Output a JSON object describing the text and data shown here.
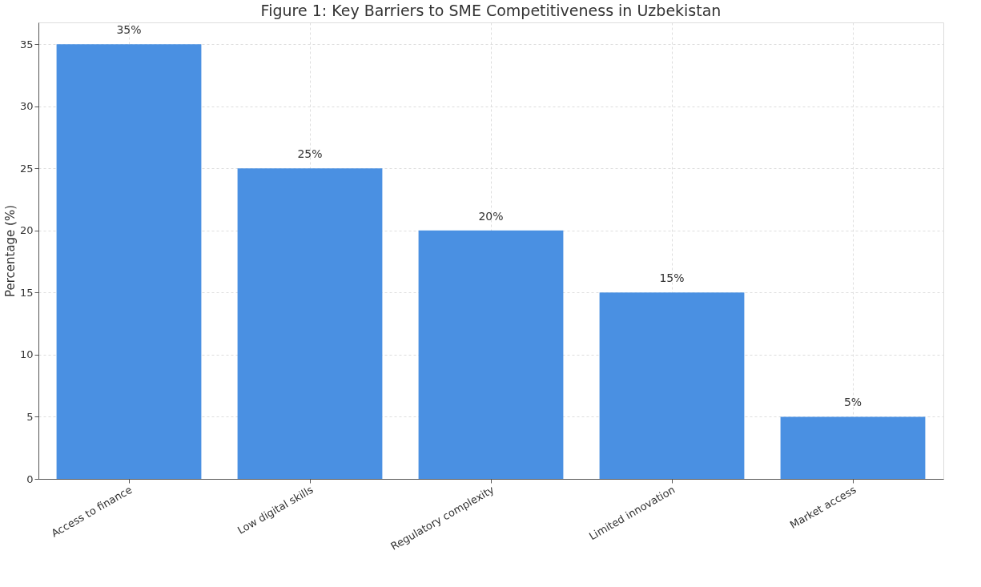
{
  "chart_data": {
    "type": "bar",
    "title": "Figure 1: Key Barriers to SME Competitiveness in Uzbekistan",
    "ylabel": "Percentage (%)",
    "categories": [
      "Access to finance",
      "Low digital skills",
      "Regulatory complexity",
      "Limited innovation",
      "Market access"
    ],
    "values": [
      35,
      25,
      20,
      15,
      5
    ],
    "value_labels": [
      "35%",
      "25%",
      "20%",
      "15%",
      "5%"
    ],
    "color": "#4a90e2",
    "ylim": [
      0,
      36.75
    ],
    "yticks": [
      0,
      5,
      10,
      15,
      20,
      25,
      30,
      35
    ],
    "grid": true
  }
}
